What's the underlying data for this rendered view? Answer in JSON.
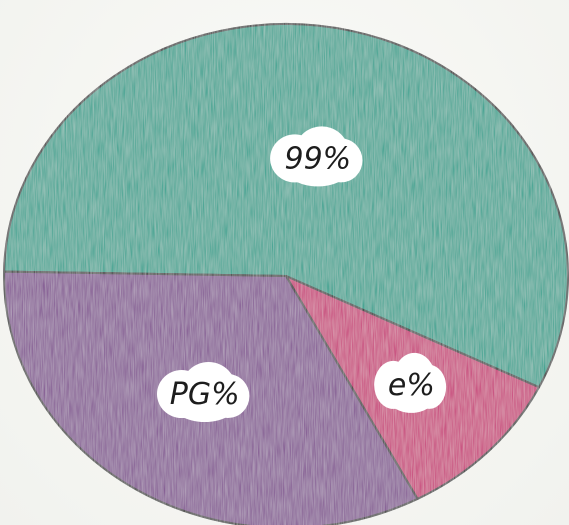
{
  "chart_data": {
    "type": "pie",
    "title": "",
    "slices": [
      {
        "label": "99%",
        "value": 57,
        "color": "#1f9e8a"
      },
      {
        "label": "e%",
        "value": 10,
        "color": "#c5236f"
      },
      {
        "label": "PG%",
        "value": 33,
        "color": "#7b4a8c"
      }
    ],
    "legend": "none"
  }
}
